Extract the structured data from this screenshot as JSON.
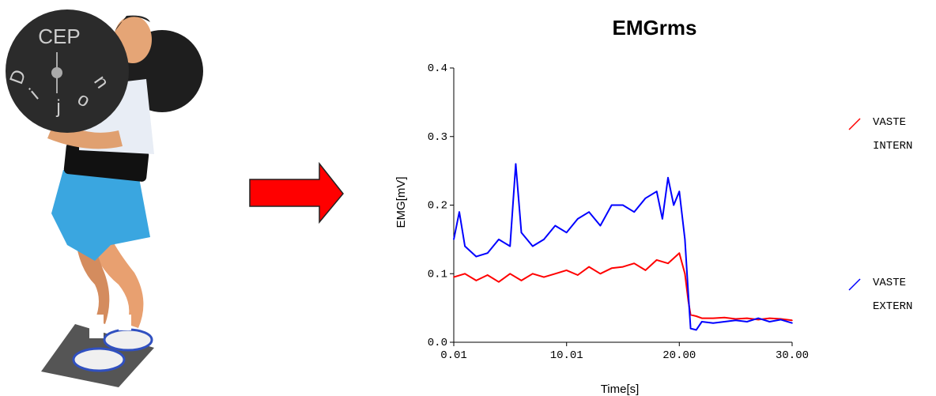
{
  "illustration": {
    "plate_text_top": "CEP",
    "plate_letters": [
      "D",
      "i",
      "j",
      "o",
      "n"
    ]
  },
  "colors": {
    "arrow": "#ff0000",
    "vaste_intern": "#ff0000",
    "vaste_extern": "#0000ff",
    "shorts": "#3aa6e0",
    "plate": "#2b2b2b"
  },
  "chart_data": {
    "type": "line",
    "title": "EMGrms",
    "xlabel": "Time[s]",
    "ylabel": "EMG[mV]",
    "xlim": [
      0.01,
      30.0
    ],
    "ylim": [
      0.0,
      0.4
    ],
    "x_ticks": [
      "0.01",
      "10.01",
      "20.00",
      "30.00"
    ],
    "y_ticks": [
      "0.0",
      "0.1",
      "0.2",
      "0.3",
      "0.4"
    ],
    "legend_position": "right",
    "series": [
      {
        "name": "VASTE INTERN",
        "color": "#ff0000",
        "legend_lines": [
          "VASTE",
          "INTERN"
        ],
        "x": [
          0.01,
          1,
          2,
          3,
          4,
          5,
          6,
          7,
          8,
          9,
          10,
          11,
          12,
          13,
          14,
          15,
          16,
          17,
          18,
          19,
          20,
          20.5,
          20.8,
          21,
          21.5,
          22,
          23,
          24,
          25,
          26,
          27,
          28,
          29,
          30
        ],
        "y": [
          0.095,
          0.1,
          0.09,
          0.098,
          0.088,
          0.1,
          0.09,
          0.1,
          0.095,
          0.1,
          0.105,
          0.098,
          0.11,
          0.1,
          0.108,
          0.11,
          0.115,
          0.105,
          0.12,
          0.115,
          0.13,
          0.1,
          0.06,
          0.04,
          0.038,
          0.035,
          0.035,
          0.036,
          0.034,
          0.035,
          0.033,
          0.035,
          0.034,
          0.032
        ]
      },
      {
        "name": "VASTE EXTERN",
        "color": "#0000ff",
        "legend_lines": [
          "VASTE",
          "EXTERN"
        ],
        "x": [
          0.01,
          0.5,
          1,
          2,
          3,
          4,
          5,
          5.5,
          6,
          7,
          8,
          9,
          10,
          11,
          12,
          13,
          14,
          15,
          16,
          17,
          18,
          18.5,
          19,
          19.5,
          20,
          20.5,
          20.8,
          21,
          21.5,
          22,
          23,
          24,
          25,
          26,
          27,
          28,
          29,
          30
        ],
        "y": [
          0.15,
          0.19,
          0.14,
          0.125,
          0.13,
          0.15,
          0.14,
          0.26,
          0.16,
          0.14,
          0.15,
          0.17,
          0.16,
          0.18,
          0.19,
          0.17,
          0.2,
          0.2,
          0.19,
          0.21,
          0.22,
          0.18,
          0.24,
          0.2,
          0.22,
          0.15,
          0.07,
          0.02,
          0.018,
          0.03,
          0.028,
          0.03,
          0.032,
          0.03,
          0.035,
          0.03,
          0.033,
          0.028
        ]
      }
    ]
  }
}
